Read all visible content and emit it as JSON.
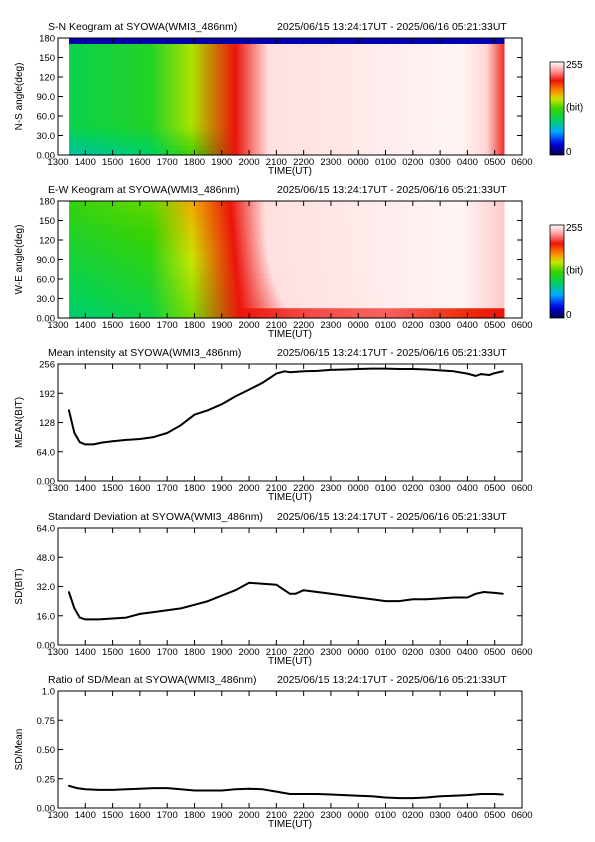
{
  "page": {
    "station": "SYOWA",
    "instrument": "WMI3_486nm",
    "time_range": "2025/06/15 13:24:17UT - 2025/06/16 05:21:33UT"
  },
  "time_axis": {
    "title": "TIME(UT)",
    "start_hour": 13,
    "end_hour": 30,
    "ticks": [
      "1300",
      "1400",
      "1500",
      "1600",
      "1700",
      "1800",
      "1900",
      "2000",
      "2100",
      "2200",
      "2300",
      "0000",
      "0100",
      "0200",
      "0300",
      "0400",
      "0500",
      "0600"
    ],
    "data_start": "13:24:17",
    "data_end": "05:21:33"
  },
  "colorbar": {
    "max_label": "255",
    "min_label": "0",
    "unit_label": "(bit)"
  },
  "chart_data": [
    {
      "type": "heatmap",
      "title": "S-N Keogram at SYOWA(WMI3_486nm)",
      "subtitle": "2025/06/15 13:24:17UT - 2025/06/16 05:21:33UT",
      "xlabel": "TIME(UT)",
      "ylabel": "N-S angle(deg)",
      "ylim": [
        0,
        180
      ],
      "yticks": [
        "0.00",
        "30.0",
        "60.0",
        "90.0",
        "120",
        "150",
        "180"
      ],
      "zlim": [
        0,
        255
      ],
      "colormap": "rainbow-to-white",
      "features": {
        "green_until_hour": 17.9,
        "red_front_hour": 19.5,
        "white_from_hour": 20.7,
        "red_edge_hour": 28.7,
        "top_band_dark": true
      }
    },
    {
      "type": "heatmap",
      "title": "E-W Keogram at SYOWA(WMI3_486nm)",
      "subtitle": "2025/06/15 13:24:17UT - 2025/06/16 05:21:33UT",
      "xlabel": "TIME(UT)",
      "ylabel": "W-E angle(deg)",
      "ylim": [
        0,
        180
      ],
      "yticks": [
        "0.00",
        "30.0",
        "60.0",
        "90.0",
        "120",
        "150",
        "180"
      ],
      "zlim": [
        0,
        255
      ],
      "colormap": "rainbow-to-white",
      "features": {
        "green_until_hour": 17.9,
        "red_front_hour": 19.3,
        "white_from_hour": 20.6,
        "bottom_red_band": true
      }
    },
    {
      "type": "line",
      "title": "Mean intensity at SYOWA(WMI3_486nm)",
      "subtitle": "2025/06/15 13:24:17UT - 2025/06/16 05:21:33UT",
      "xlabel": "TIME(UT)",
      "ylabel": "MEAN(BIT)",
      "ylim": [
        0,
        256
      ],
      "yticks": [
        "0.00",
        "64.0",
        "128",
        "192",
        "256"
      ],
      "x": [
        13.4,
        13.6,
        13.8,
        14.0,
        14.3,
        14.6,
        15.0,
        15.5,
        16.0,
        16.5,
        17.0,
        17.5,
        18.0,
        18.5,
        19.0,
        19.5,
        20.0,
        20.5,
        21.0,
        21.3,
        21.5,
        22.0,
        22.5,
        23.0,
        23.5,
        24.0,
        24.5,
        25.0,
        25.5,
        26.0,
        26.5,
        27.0,
        27.5,
        28.0,
        28.3,
        28.5,
        28.8,
        29.0,
        29.3
      ],
      "series": [
        {
          "values": [
            155,
            105,
            85,
            80,
            80,
            84,
            87,
            90,
            92,
            96,
            105,
            122,
            145,
            155,
            168,
            185,
            200,
            215,
            235,
            240,
            238,
            240,
            241,
            243,
            244,
            245,
            246,
            246,
            245,
            245,
            244,
            242,
            240,
            235,
            230,
            234,
            232,
            236,
            240
          ]
        }
      ]
    },
    {
      "type": "line",
      "title": "Standard Deviation at SYOWA(WMI3_486nm)",
      "subtitle": "2025/06/15 13:24:17UT - 2025/06/16 05:21:33UT",
      "xlabel": "TIME(UT)",
      "ylabel": "SD(BIT)",
      "ylim": [
        0,
        64
      ],
      "yticks": [
        "0.00",
        "16.0",
        "32.0",
        "48.0",
        "64.0"
      ],
      "x": [
        13.4,
        13.6,
        13.8,
        14.0,
        14.5,
        15.0,
        15.5,
        16.0,
        16.5,
        17.0,
        17.5,
        18.0,
        18.5,
        19.0,
        19.5,
        20.0,
        20.5,
        21.0,
        21.3,
        21.5,
        21.7,
        22.0,
        22.5,
        23.0,
        23.5,
        24.0,
        24.5,
        25.0,
        25.5,
        26.0,
        26.5,
        27.0,
        27.5,
        28.0,
        28.3,
        28.6,
        29.0,
        29.3
      ],
      "series": [
        {
          "values": [
            29,
            20,
            15,
            14,
            14,
            14.5,
            15,
            17,
            18,
            19,
            20,
            22,
            24,
            27,
            30,
            34,
            33.5,
            33,
            30,
            28,
            28,
            30,
            29,
            28,
            27,
            26,
            25,
            24,
            24,
            25,
            25,
            25.5,
            26,
            26,
            28,
            29,
            28.5,
            28
          ]
        }
      ]
    },
    {
      "type": "line",
      "title": "Ratio of SD/Mean at SYOWA(WMI3_486nm)",
      "subtitle": "2025/06/15 13:24:17UT - 2025/06/16 05:21:33UT",
      "xlabel": "TIME(UT)",
      "ylabel": "SD/Mean",
      "ylim": [
        0,
        1
      ],
      "yticks": [
        "0.00",
        "0.25",
        "0.50",
        "0.75",
        "1.0"
      ],
      "x": [
        13.4,
        13.7,
        14.0,
        14.5,
        15.0,
        15.5,
        16.0,
        16.5,
        17.0,
        17.5,
        18.0,
        18.5,
        19.0,
        19.5,
        20.0,
        20.5,
        21.0,
        21.5,
        22.0,
        22.5,
        23.0,
        23.5,
        24.0,
        24.5,
        25.0,
        25.5,
        26.0,
        26.5,
        27.0,
        27.5,
        28.0,
        28.5,
        29.0,
        29.3
      ],
      "series": [
        {
          "values": [
            0.19,
            0.17,
            0.16,
            0.155,
            0.155,
            0.16,
            0.165,
            0.17,
            0.17,
            0.16,
            0.15,
            0.15,
            0.15,
            0.16,
            0.165,
            0.16,
            0.14,
            0.12,
            0.12,
            0.12,
            0.115,
            0.11,
            0.105,
            0.1,
            0.09,
            0.085,
            0.085,
            0.09,
            0.1,
            0.105,
            0.11,
            0.12,
            0.12,
            0.115
          ]
        }
      ]
    }
  ]
}
